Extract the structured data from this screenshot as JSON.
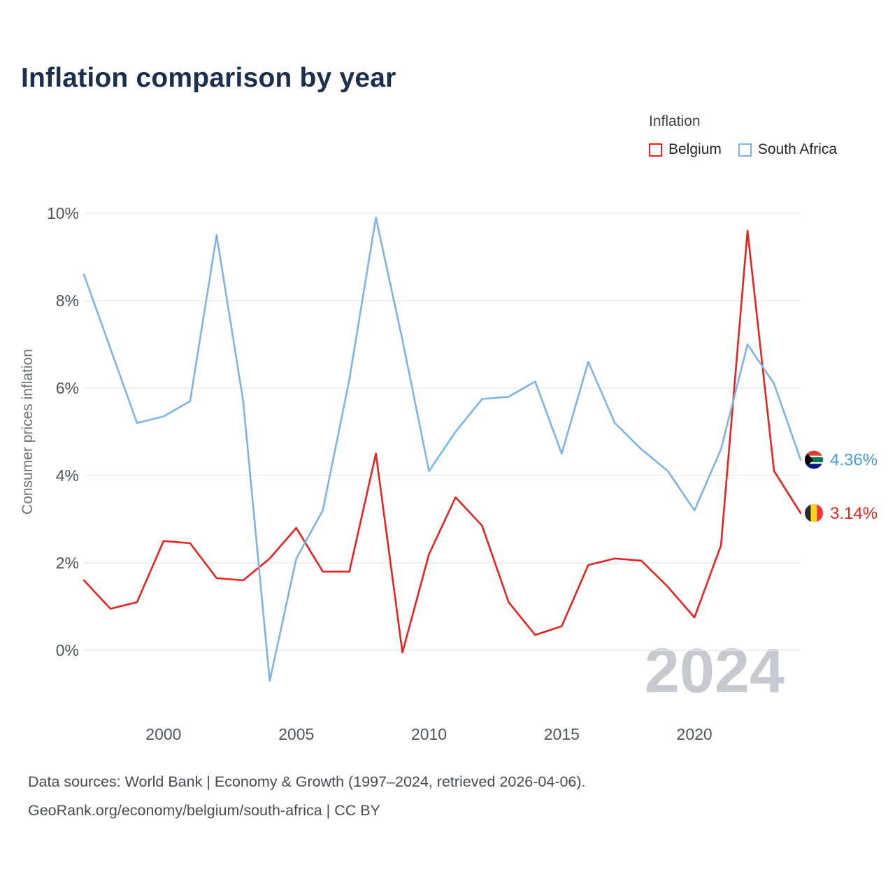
{
  "header": {
    "title": "Inflation comparison by year"
  },
  "legend": {
    "title": "Inflation",
    "series": [
      {
        "label": "Belgium",
        "color": "#e8231e"
      },
      {
        "label": "South Africa",
        "color": "#7cb5e5"
      }
    ]
  },
  "chart_data": {
    "type": "line",
    "title": "Inflation comparison by year",
    "xlabel": "",
    "ylabel": "Consumer prices inflation",
    "x": [
      1997,
      1998,
      1999,
      2000,
      2001,
      2002,
      2003,
      2004,
      2005,
      2006,
      2007,
      2008,
      2009,
      2010,
      2011,
      2012,
      2013,
      2014,
      2015,
      2016,
      2017,
      2018,
      2019,
      2020,
      2021,
      2022,
      2023,
      2024
    ],
    "series": [
      {
        "name": "Belgium",
        "color": "#e8231e",
        "values": [
          1.6,
          0.95,
          1.1,
          2.5,
          2.45,
          1.65,
          1.6,
          2.1,
          2.8,
          1.8,
          1.8,
          4.5,
          -0.05,
          2.2,
          3.5,
          2.85,
          1.1,
          0.35,
          0.55,
          1.95,
          2.1,
          2.05,
          1.45,
          0.75,
          2.4,
          9.6,
          4.1,
          3.14
        ]
      },
      {
        "name": "South Africa",
        "color": "#7cb5e5",
        "values": [
          8.6,
          6.9,
          5.2,
          5.35,
          5.7,
          9.5,
          5.7,
          -0.7,
          2.1,
          3.2,
          6.2,
          9.9,
          7.1,
          4.1,
          5.0,
          5.75,
          5.8,
          6.15,
          4.5,
          6.6,
          5.2,
          4.6,
          4.1,
          3.2,
          4.6,
          7.0,
          6.1,
          4.36
        ]
      }
    ],
    "yticks": [
      0,
      2,
      4,
      6,
      8,
      10
    ],
    "ytick_labels": [
      "0%",
      "2%",
      "4%",
      "6%",
      "8%",
      "10%"
    ],
    "xticks": [
      2000,
      2005,
      2010,
      2015,
      2020
    ],
    "ylim": [
      -1.5,
      10
    ],
    "grid": "horizontal",
    "legend_position": "top-right",
    "watermark": "2024",
    "end_labels": [
      {
        "series": "South Africa",
        "value_label": "4.36%",
        "color": "#4a9cdb",
        "flag": "south-africa"
      },
      {
        "series": "Belgium",
        "value_label": "3.14%",
        "color": "#e8231e",
        "flag": "belgium"
      }
    ]
  },
  "footer": {
    "line1": "Data sources: World Bank | Economy & Growth (1997–2024, retrieved 2026-04-06).",
    "line2": "GeoRank.org/economy/belgium/south-africa | CC BY"
  }
}
